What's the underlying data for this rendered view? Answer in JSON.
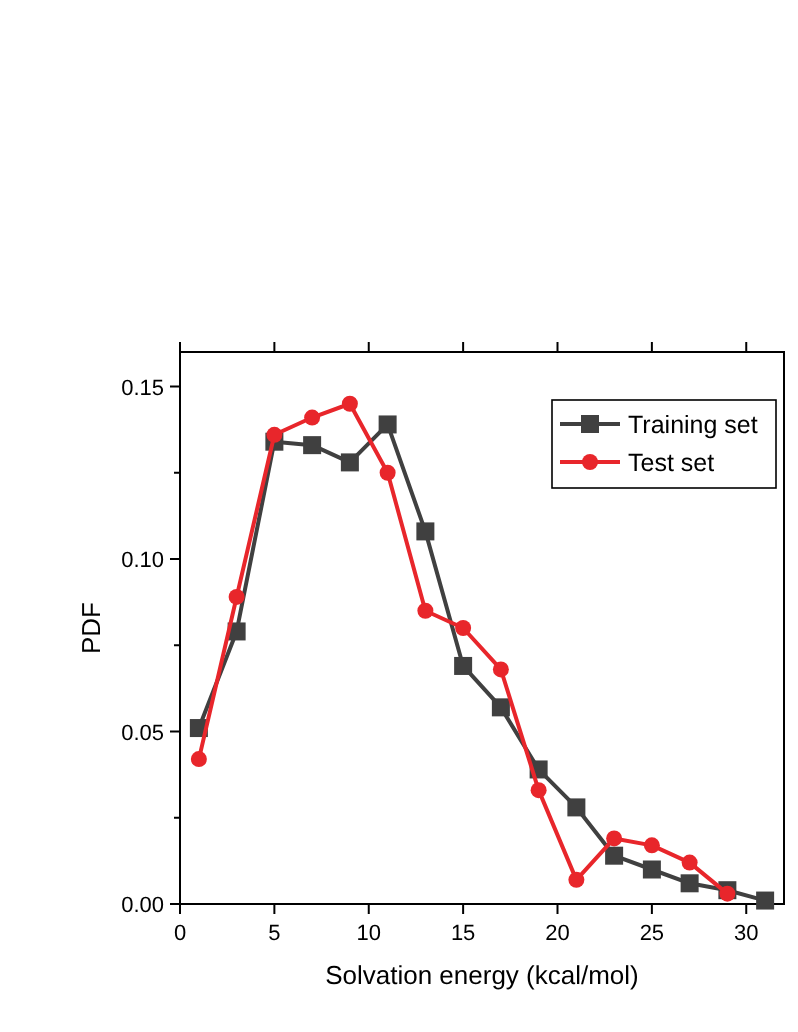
{
  "chart_data": {
    "type": "line",
    "xlabel": "Solvation energy (kcal/mol)",
    "ylabel": "PDF",
    "xlim": [
      0,
      32
    ],
    "xticks": [
      0,
      5,
      10,
      15,
      20,
      25,
      30
    ],
    "ylim": [
      0,
      0.16
    ],
    "yticks": [
      {
        "value": 0,
        "label": "0.00"
      },
      {
        "value": 0.025,
        "label": null
      },
      {
        "value": 0.05,
        "label": "0.05"
      },
      {
        "value": 0.075,
        "label": null
      },
      {
        "value": 0.1,
        "label": "0.10"
      },
      {
        "value": 0.125,
        "label": null
      },
      {
        "value": 0.15,
        "label": "0.15"
      }
    ],
    "legend": "top right",
    "grid": false,
    "series": [
      {
        "name": "Training set",
        "color": "#404040",
        "marker": "square",
        "x": [
          1,
          3,
          5,
          7,
          9,
          11,
          13,
          15,
          17,
          19,
          21,
          23,
          25,
          27,
          29,
          31
        ],
        "values": [
          0.051,
          0.079,
          0.134,
          0.133,
          0.128,
          0.139,
          0.108,
          0.069,
          0.057,
          0.039,
          0.028,
          0.014,
          0.01,
          0.006,
          0.004,
          0.001
        ]
      },
      {
        "name": "Test set",
        "color": "#e8262b",
        "marker": "circle",
        "x": [
          1,
          3,
          5,
          7,
          9,
          11,
          13,
          15,
          17,
          19,
          21,
          23,
          25,
          27,
          29
        ],
        "values": [
          0.042,
          0.089,
          0.136,
          0.141,
          0.145,
          0.125,
          0.085,
          0.08,
          0.068,
          0.033,
          0.007,
          0.019,
          0.017,
          0.012,
          0.003
        ]
      }
    ]
  }
}
